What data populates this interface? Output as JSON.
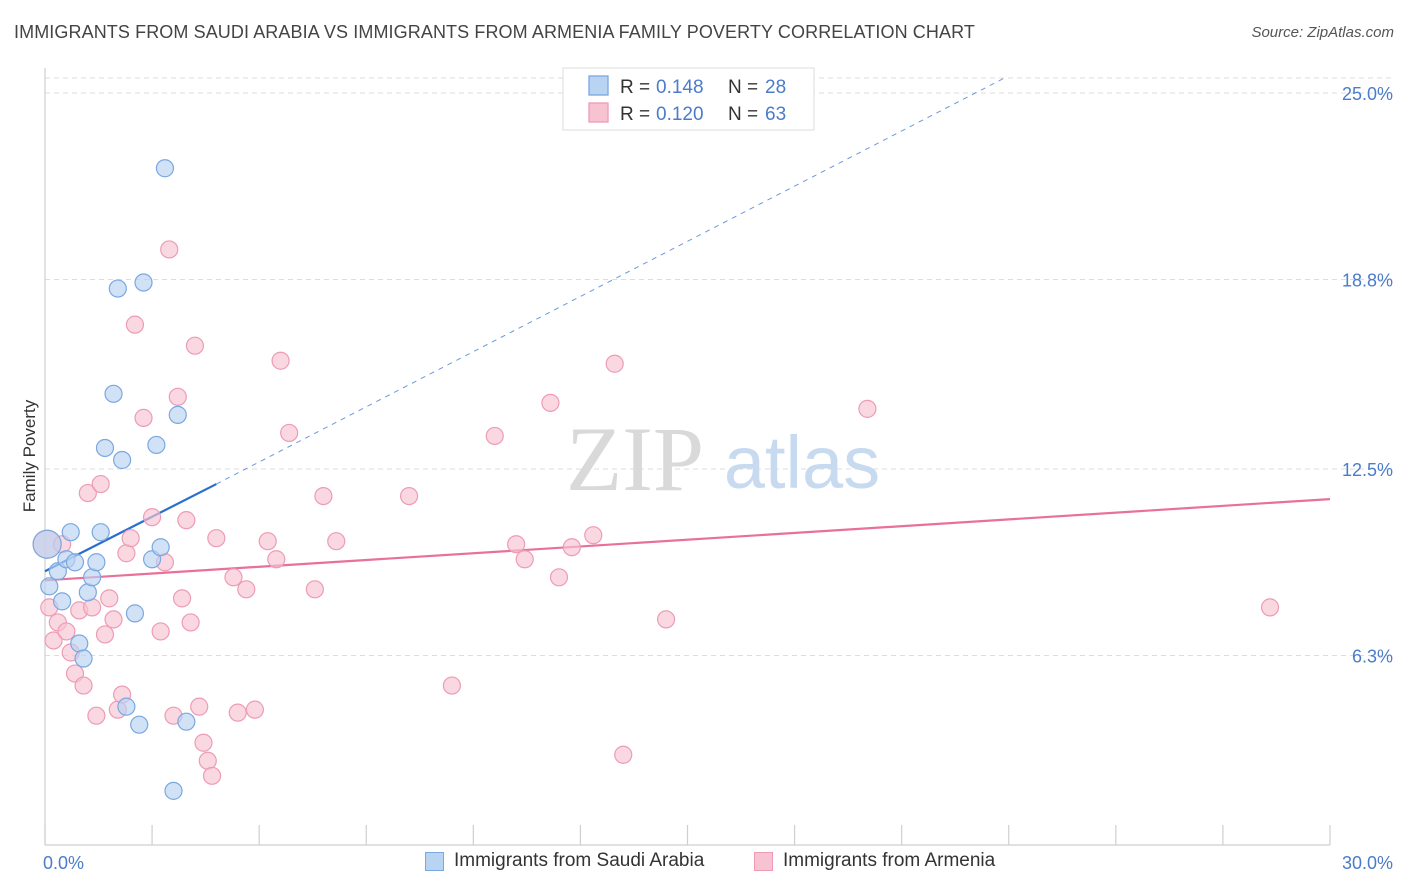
{
  "header": {
    "title": "IMMIGRANTS FROM SAUDI ARABIA VS IMMIGRANTS FROM ARMENIA FAMILY POVERTY CORRELATION CHART",
    "source": "Source: ZipAtlas.com"
  },
  "watermark": {
    "zip": "ZIP",
    "atlas": "atlas"
  },
  "colors": {
    "blue_fill": "#b9d3f3",
    "blue_stroke": "#7aa8e0",
    "blue_line": "#2a6fcf",
    "pink_fill": "#f7c3d3",
    "pink_stroke": "#ee9bb6",
    "pink_line": "#e8709a",
    "axis_label": "#4a7cc9",
    "grid": "#dddddd"
  },
  "chart_data": {
    "type": "scatter",
    "title": "IMMIGRANTS FROM SAUDI ARABIA VS IMMIGRANTS FROM ARMENIA FAMILY POVERTY CORRELATION CHART",
    "xlabel": "",
    "ylabel": "Family Poverty",
    "xlim": [
      0,
      30
    ],
    "ylim": [
      0,
      25.5
    ],
    "x_tick_labels": [
      {
        "value": 0,
        "label": "0.0%"
      },
      {
        "value": 30,
        "label": "30.0%"
      }
    ],
    "y_tick_labels": [
      {
        "value": 25.0,
        "label": "25.0%"
      },
      {
        "value": 18.8,
        "label": "18.8%"
      },
      {
        "value": 12.5,
        "label": "12.5%"
      },
      {
        "value": 6.3,
        "label": "6.3%"
      }
    ],
    "legend": [
      {
        "r_label": "R =",
        "r_value": "0.148",
        "n_label": "N =",
        "n_value": "28"
      },
      {
        "r_label": "R =",
        "r_value": "0.120",
        "n_label": "N =",
        "n_value": "63"
      }
    ],
    "series": [
      {
        "name": "Immigrants from Saudi Arabia",
        "color": "blue",
        "trend": {
          "x0": 0.0,
          "y0": 9.1,
          "x1": 4.0,
          "y1": 12.0,
          "dashed_to_x": 22.4,
          "dashed_to_y": 25.5
        },
        "points": [
          [
            0.05,
            10.0
          ],
          [
            0.1,
            8.6
          ],
          [
            0.3,
            9.1
          ],
          [
            0.4,
            8.1
          ],
          [
            0.5,
            9.5
          ],
          [
            0.6,
            10.4
          ],
          [
            0.7,
            9.4
          ],
          [
            0.8,
            6.7
          ],
          [
            0.9,
            6.2
          ],
          [
            1.0,
            8.4
          ],
          [
            1.1,
            8.9
          ],
          [
            1.2,
            9.4
          ],
          [
            1.3,
            10.4
          ],
          [
            1.4,
            13.2
          ],
          [
            1.6,
            15.0
          ],
          [
            1.7,
            18.5
          ],
          [
            1.8,
            12.8
          ],
          [
            1.9,
            4.6
          ],
          [
            2.1,
            7.7
          ],
          [
            2.2,
            4.0
          ],
          [
            2.3,
            18.7
          ],
          [
            2.5,
            9.5
          ],
          [
            2.6,
            13.3
          ],
          [
            2.7,
            9.9
          ],
          [
            2.8,
            22.5
          ],
          [
            3.0,
            1.8
          ],
          [
            3.1,
            14.3
          ],
          [
            3.3,
            4.1
          ]
        ]
      },
      {
        "name": "Immigrants from Armenia",
        "color": "pink",
        "trend": {
          "x0": 0.0,
          "y0": 8.8,
          "x1": 30.0,
          "y1": 11.5
        },
        "points": [
          [
            0.05,
            10.0
          ],
          [
            0.1,
            7.9
          ],
          [
            0.2,
            6.8
          ],
          [
            0.3,
            7.4
          ],
          [
            0.4,
            10.0
          ],
          [
            0.5,
            7.1
          ],
          [
            0.6,
            6.4
          ],
          [
            0.7,
            5.7
          ],
          [
            0.8,
            7.8
          ],
          [
            0.9,
            5.3
          ],
          [
            1.0,
            11.7
          ],
          [
            1.1,
            7.9
          ],
          [
            1.2,
            4.3
          ],
          [
            1.3,
            12.0
          ],
          [
            1.4,
            7.0
          ],
          [
            1.5,
            8.2
          ],
          [
            1.6,
            7.5
          ],
          [
            1.7,
            4.5
          ],
          [
            1.8,
            5.0
          ],
          [
            1.9,
            9.7
          ],
          [
            2.0,
            10.2
          ],
          [
            2.1,
            17.3
          ],
          [
            2.3,
            14.2
          ],
          [
            2.5,
            10.9
          ],
          [
            2.7,
            7.1
          ],
          [
            2.8,
            9.4
          ],
          [
            2.9,
            19.8
          ],
          [
            3.0,
            4.3
          ],
          [
            3.1,
            14.9
          ],
          [
            3.2,
            8.2
          ],
          [
            3.3,
            10.8
          ],
          [
            3.4,
            7.4
          ],
          [
            3.5,
            16.6
          ],
          [
            3.6,
            4.6
          ],
          [
            3.7,
            3.4
          ],
          [
            3.8,
            2.8
          ],
          [
            3.9,
            2.3
          ],
          [
            4.0,
            10.2
          ],
          [
            4.4,
            8.9
          ],
          [
            4.5,
            4.4
          ],
          [
            4.7,
            8.5
          ],
          [
            4.9,
            4.5
          ],
          [
            5.2,
            10.1
          ],
          [
            5.4,
            9.5
          ],
          [
            5.5,
            16.1
          ],
          [
            5.7,
            13.7
          ],
          [
            6.3,
            8.5
          ],
          [
            6.5,
            11.6
          ],
          [
            6.8,
            10.1
          ],
          [
            8.5,
            11.6
          ],
          [
            9.5,
            5.3
          ],
          [
            10.5,
            13.6
          ],
          [
            11.0,
            10.0
          ],
          [
            11.2,
            9.5
          ],
          [
            11.8,
            14.7
          ],
          [
            12.0,
            8.9
          ],
          [
            12.3,
            9.9
          ],
          [
            12.8,
            10.3
          ],
          [
            13.3,
            16.0
          ],
          [
            13.5,
            3.0
          ],
          [
            14.5,
            7.5
          ],
          [
            19.2,
            14.5
          ],
          [
            28.6,
            7.9
          ]
        ]
      }
    ]
  }
}
